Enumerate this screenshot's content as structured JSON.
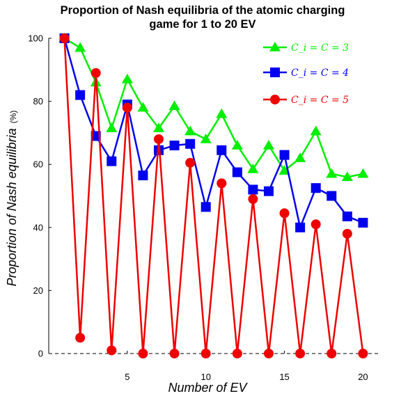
{
  "chart_data": {
    "type": "line",
    "title_line1": "Proportion of Nash equilibria of the atomic charging",
    "title_line2": "game for 1 to 20 EV",
    "xlabel": "Number of EV",
    "ylabel": "Proportion of Nash equilibria",
    "ylabel_unit": "(%)",
    "xlim": [
      0,
      21
    ],
    "ylim": [
      0,
      100
    ],
    "xticks": [
      5,
      10,
      15,
      20
    ],
    "yticks": [
      0,
      20,
      40,
      60,
      80,
      100
    ],
    "grid": false,
    "legend_position": "top-right",
    "x": [
      1,
      2,
      3,
      4,
      5,
      6,
      7,
      8,
      9,
      10,
      11,
      12,
      13,
      14,
      15,
      16,
      17,
      18,
      19,
      20
    ],
    "series": [
      {
        "name": "C_i = C = 3",
        "color": "#00ee00",
        "marker": "triangle",
        "values": [
          100,
          97,
          86,
          71.5,
          87,
          78,
          71.5,
          78.5,
          70.5,
          68,
          76,
          66,
          58.5,
          66,
          58,
          62,
          70.5,
          57,
          56,
          57
        ]
      },
      {
        "name": "C_i = C = 4",
        "color": "#0000ee",
        "marker": "square",
        "values": [
          100,
          82,
          69,
          61,
          79,
          56.5,
          64.5,
          66,
          66.5,
          46.5,
          64.5,
          57.5,
          52,
          51.5,
          63,
          40,
          52.5,
          50,
          43.5,
          41.5
        ]
      },
      {
        "name": "C_i = C = 5",
        "color": "#ee0000",
        "marker": "circle",
        "values": [
          100,
          5,
          89,
          1,
          78,
          0,
          68,
          0,
          60.5,
          0,
          54,
          0,
          49,
          0,
          44.5,
          0,
          41,
          0,
          38,
          0
        ]
      }
    ]
  }
}
